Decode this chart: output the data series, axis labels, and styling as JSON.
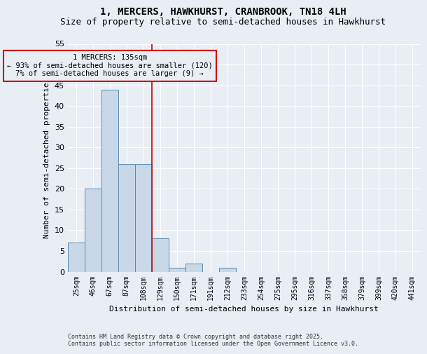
{
  "title": "1, MERCERS, HAWKHURST, CRANBROOK, TN18 4LH",
  "subtitle": "Size of property relative to semi-detached houses in Hawkhurst",
  "xlabel": "Distribution of semi-detached houses by size in Hawkhurst",
  "ylabel": "Number of semi-detached properties",
  "categories": [
    "25sqm",
    "46sqm",
    "67sqm",
    "87sqm",
    "108sqm",
    "129sqm",
    "150sqm",
    "171sqm",
    "191sqm",
    "212sqm",
    "233sqm",
    "254sqm",
    "275sqm",
    "295sqm",
    "316sqm",
    "337sqm",
    "358sqm",
    "379sqm",
    "399sqm",
    "420sqm",
    "441sqm"
  ],
  "values": [
    7,
    20,
    44,
    26,
    26,
    8,
    1,
    2,
    0,
    1,
    0,
    0,
    0,
    0,
    0,
    0,
    0,
    0,
    0,
    0,
    0
  ],
  "bar_color": "#c8d8e8",
  "bar_edge_color": "#5a8ab0",
  "ylim": [
    0,
    55
  ],
  "yticks": [
    0,
    5,
    10,
    15,
    20,
    25,
    30,
    35,
    40,
    45,
    50,
    55
  ],
  "property_line_x": 4.5,
  "annotation_title": "1 MERCERS: 135sqm",
  "annotation_line1": "← 93% of semi-detached houses are smaller (120)",
  "annotation_line2": "7% of semi-detached houses are larger (9) →",
  "annotation_box_color": "#cc0000",
  "background_color": "#e8eef4",
  "grid_color": "#ffffff",
  "footer_line1": "Contains HM Land Registry data © Crown copyright and database right 2025.",
  "footer_line2": "Contains public sector information licensed under the Open Government Licence v3.0.",
  "title_fontsize": 10,
  "subtitle_fontsize": 9,
  "tick_fontsize": 7,
  "ylabel_fontsize": 8,
  "xlabel_fontsize": 8,
  "annotation_fontsize": 7.5,
  "footer_fontsize": 6
}
